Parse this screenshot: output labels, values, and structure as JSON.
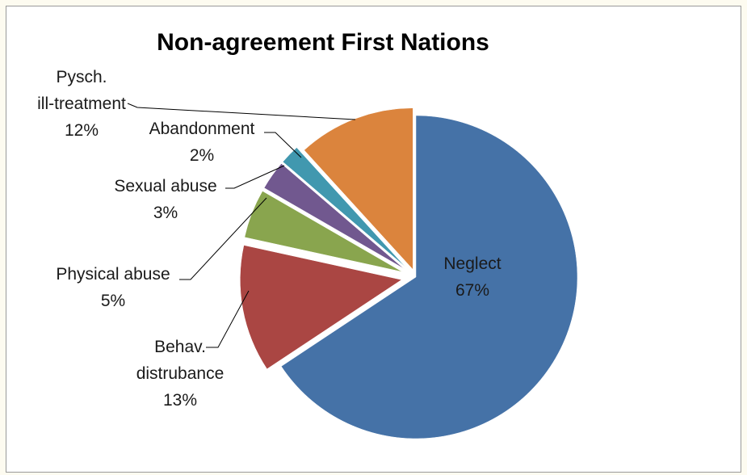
{
  "chart_data": {
    "type": "pie",
    "title": "Non-agreement First Nations",
    "slices": [
      {
        "name": "Neglect",
        "value": 67,
        "label_lines": [
          "Neglect"
        ],
        "pct_label": "67%",
        "color": "#4572a7"
      },
      {
        "name": "Behav. distrubance",
        "value": 13,
        "label_lines": [
          "Behav.",
          "distrubance"
        ],
        "pct_label": "13%",
        "color": "#aa4643"
      },
      {
        "name": "Physical abuse",
        "value": 5,
        "label_lines": [
          "Physical abuse"
        ],
        "pct_label": "5%",
        "color": "#89a54e"
      },
      {
        "name": "Sexual abuse",
        "value": 3,
        "label_lines": [
          "Sexual abuse"
        ],
        "pct_label": "3%",
        "color": "#71588f"
      },
      {
        "name": "Abandonment",
        "value": 2,
        "label_lines": [
          "Abandonment"
        ],
        "pct_label": "2%",
        "color": "#4198af"
      },
      {
        "name": "Pysch. ill-treatment",
        "value": 12,
        "label_lines": [
          "Pysch.",
          "ill-treatment"
        ],
        "pct_label": "12%",
        "color": "#db843d"
      }
    ],
    "legend": "none",
    "labels": "outside with leader lines (Neglect inside)"
  }
}
